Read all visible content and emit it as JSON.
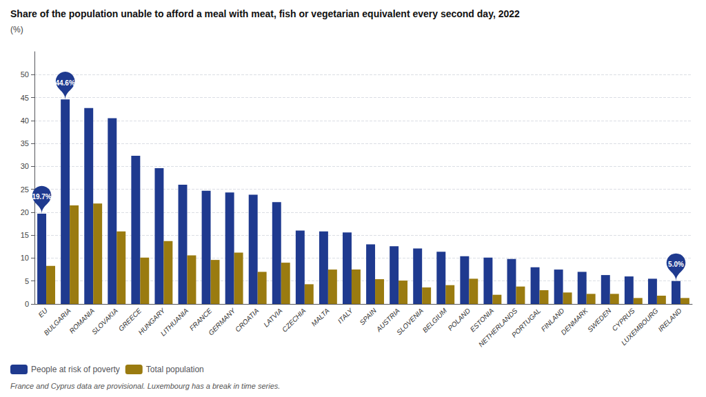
{
  "chart_data": {
    "type": "bar",
    "title": "Share of the population unable to afford a meal with meat, fish or vegetarian equivalent every second day, 2022",
    "subtitle": "(%)",
    "footnote": "France and Cyprus data are provisional. Luxembourg has a break in time series.",
    "categories": [
      "EU",
      "BULGARIA",
      "ROMANIA",
      "SLOVAKIA",
      "GREECE",
      "HUNGARY",
      "LITHUANIA",
      "FRANCE",
      "GERMANY",
      "CROATIA",
      "LATVIA",
      "CZECHIA",
      "MALTA",
      "ITALY",
      "SPAIN",
      "AUSTRIA",
      "SLOVENIA",
      "BELGIUM",
      "POLAND",
      "ESTONIA",
      "NETHERLANDS",
      "PORTUGAL",
      "FINLAND",
      "DENMARK",
      "SWEDEN",
      "CYPRUS",
      "LUXEMBOURG",
      "IRELAND"
    ],
    "series": [
      {
        "name": "People at risk of poverty",
        "color": "#1f3a8f",
        "values": [
          19.7,
          44.6,
          42.7,
          40.5,
          32.3,
          29.6,
          26.0,
          24.7,
          24.3,
          23.8,
          22.2,
          16.0,
          15.8,
          15.6,
          13.0,
          12.6,
          12.1,
          11.4,
          10.4,
          10.1,
          9.8,
          8.0,
          7.5,
          7.0,
          6.3,
          6.0,
          5.5,
          5.0
        ]
      },
      {
        "name": "Total population",
        "color": "#9a7b10",
        "values": [
          8.3,
          21.5,
          21.9,
          15.8,
          10.1,
          13.7,
          10.6,
          9.6,
          11.2,
          7.0,
          9.0,
          4.3,
          7.5,
          7.5,
          5.4,
          5.1,
          3.6,
          4.1,
          5.5,
          2.0,
          3.8,
          3.0,
          2.5,
          2.2,
          2.2,
          1.3,
          1.8,
          1.3
        ]
      }
    ],
    "ylim": [
      0,
      55
    ],
    "yticks": [
      0,
      5,
      10,
      15,
      20,
      25,
      30,
      35,
      40,
      45,
      50
    ],
    "grid": true,
    "legend": "lower left",
    "annotations": [
      {
        "text": "19.7%",
        "category": "EU",
        "series": "People at risk of poverty",
        "value": 19.7
      },
      {
        "text": "44.6%",
        "category": "BULGARIA",
        "series": "People at risk of poverty",
        "value": 44.6
      },
      {
        "text": "5.0%",
        "category": "IRELAND",
        "series": "People at risk of poverty",
        "value": 5.0
      }
    ]
  }
}
